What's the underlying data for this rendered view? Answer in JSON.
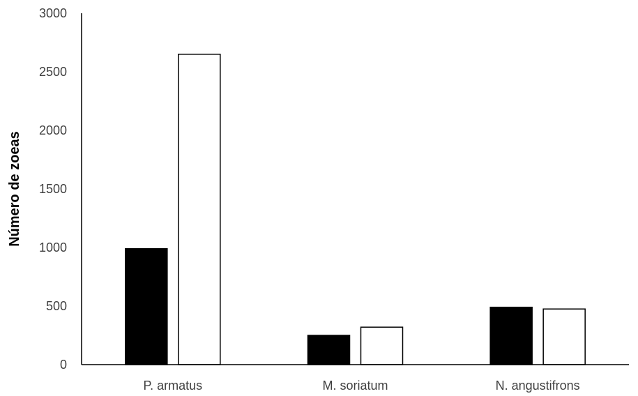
{
  "chart_data": {
    "type": "bar",
    "title": "",
    "xlabel": "",
    "ylabel": "Número de zoeas",
    "categories": [
      "P. armatus",
      "M. soriatum",
      "N. angustifrons"
    ],
    "series": [
      {
        "values": [
          990,
          250,
          490
        ],
        "color": "#000000"
      },
      {
        "values": [
          2650,
          320,
          475
        ],
        "color": "#ffffff"
      }
    ],
    "ylim": [
      0,
      3000
    ],
    "yticks": [
      0,
      500,
      1000,
      1500,
      2000,
      2500,
      3000
    ],
    "grid": false,
    "legend": "none"
  }
}
